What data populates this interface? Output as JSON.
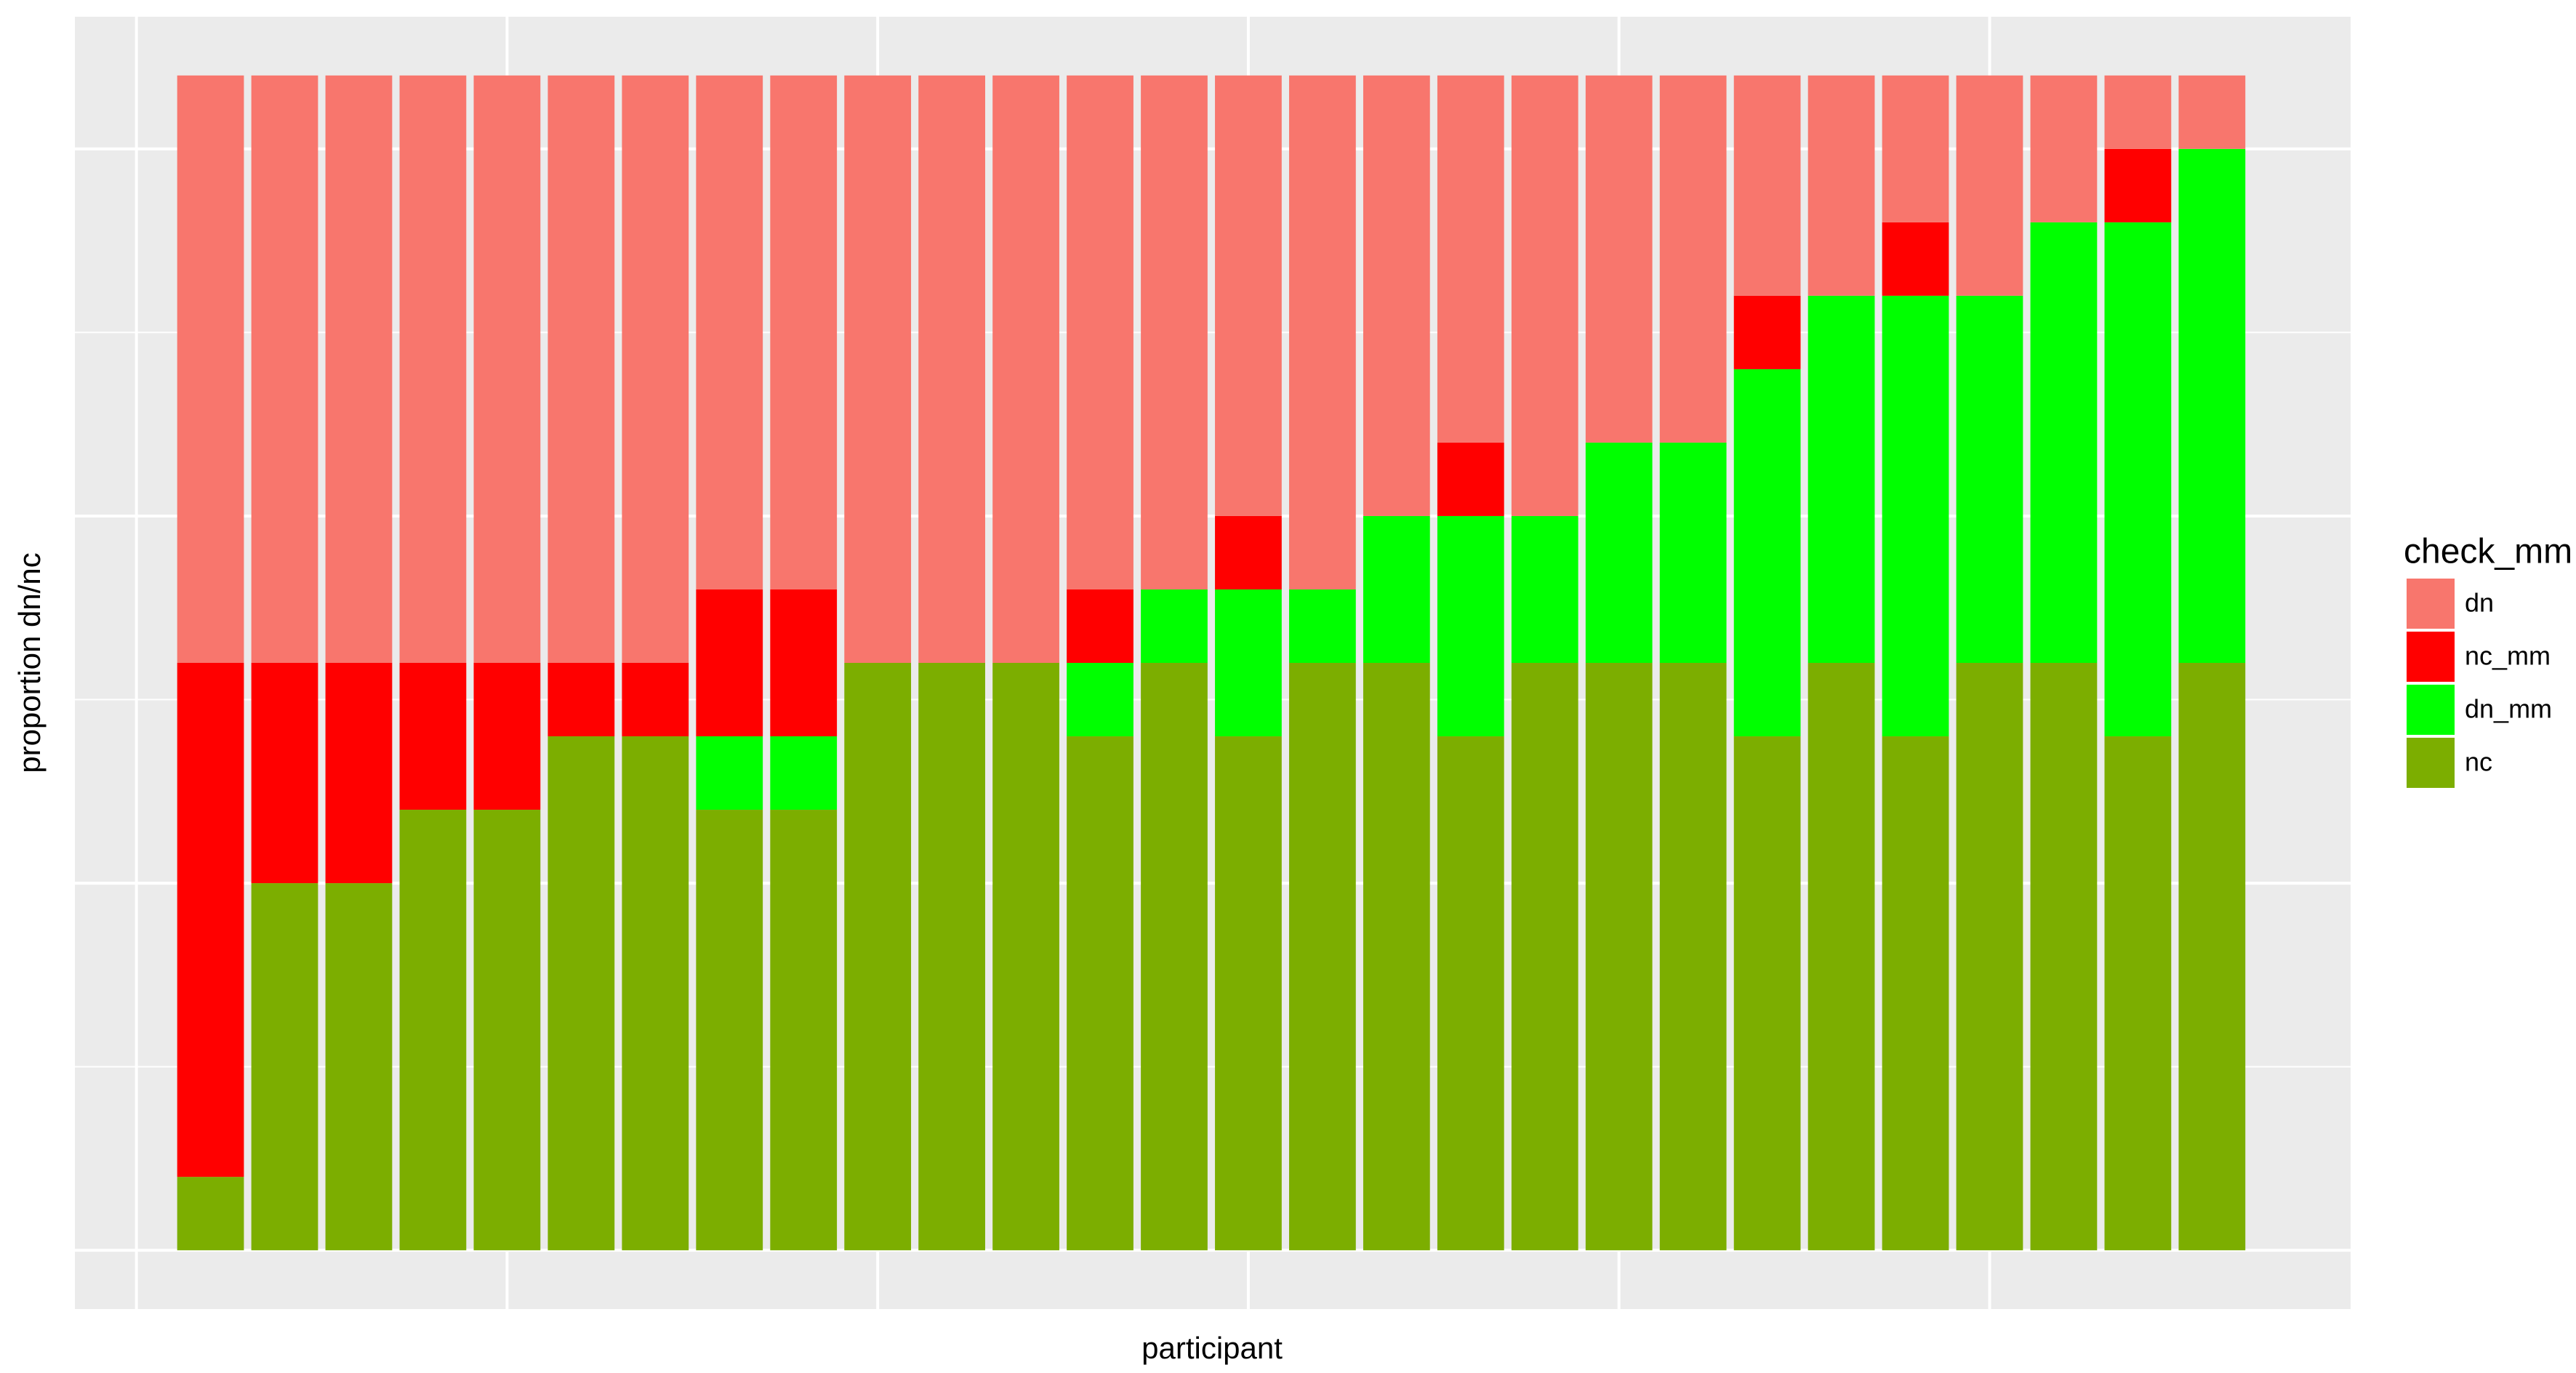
{
  "chart_data": {
    "type": "stacked_bar",
    "xlabel": "participant",
    "ylabel": "proportion dn/nc",
    "legend_title": "check_mm",
    "legend": "right",
    "x": [
      1,
      2,
      3,
      4,
      5,
      6,
      7,
      8,
      9,
      10,
      11,
      12,
      13,
      14,
      15,
      16,
      17,
      18,
      19,
      20,
      21,
      22,
      23,
      24,
      25,
      26,
      27,
      28
    ],
    "xlim": [
      -0.83,
      29.87
    ],
    "xticks": [
      0,
      5,
      10,
      15,
      20,
      25
    ],
    "ylim": [
      -0.8,
      16.8
    ],
    "yticks": [
      0,
      5,
      10,
      15
    ],
    "yminorticks": [
      2.5,
      7.5,
      12.5
    ],
    "grid": true,
    "series": [
      {
        "name": "dn",
        "color": "#F8766D",
        "values": [
          8,
          8,
          8,
          8,
          8,
          8,
          8,
          7,
          7,
          8,
          8,
          8,
          7,
          7,
          6,
          7,
          6,
          5,
          6,
          5,
          5,
          3,
          3,
          2,
          3,
          2,
          1,
          1
        ]
      },
      {
        "name": "nc_mm",
        "color": "#FF0000",
        "values": [
          7,
          3,
          3,
          2,
          2,
          1,
          1,
          2,
          2,
          0,
          0,
          0,
          1,
          0,
          1,
          0,
          0,
          1,
          0,
          0,
          0,
          1,
          0,
          1,
          0,
          0,
          1,
          0
        ]
      },
      {
        "name": "dn_mm",
        "color": "#00FF00",
        "values": [
          0,
          0,
          0,
          0,
          0,
          0,
          0,
          1,
          1,
          0,
          0,
          0,
          1,
          1,
          2,
          1,
          2,
          3,
          2,
          3,
          3,
          5,
          5,
          6,
          5,
          6,
          7,
          7
        ]
      },
      {
        "name": "nc",
        "color": "#7CAE00",
        "values": [
          1,
          5,
          5,
          6,
          6,
          7,
          7,
          6,
          6,
          8,
          8,
          8,
          7,
          8,
          7,
          8,
          8,
          7,
          8,
          8,
          8,
          7,
          8,
          7,
          8,
          8,
          7,
          8
        ]
      }
    ]
  }
}
